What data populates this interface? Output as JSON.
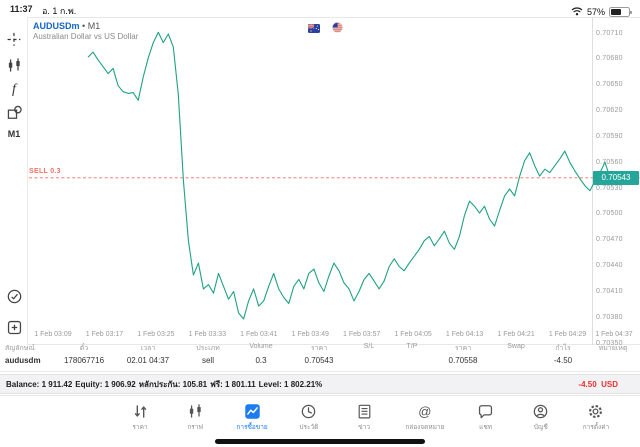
{
  "status_bar": {
    "time": "11:37",
    "date": "อ. 1 ก.พ.",
    "battery_percent": "57%"
  },
  "chart": {
    "symbol": "AUDUSDm",
    "bullet": "•",
    "timeframe": "M1",
    "description": "Australian Dollar vs US Dollar",
    "sell_label": "SELL 0.3",
    "current_price_box": "0.70543",
    "y_axis_labels": [
      "0.70710",
      "0.70680",
      "0.70650",
      "0.70620",
      "0.70590",
      "0.70560",
      "0.70530",
      "0.70500",
      "0.70470",
      "0.70440",
      "0.70410",
      "0.70380",
      "0.70350"
    ],
    "x_axis_labels": [
      "1 Feb 03:09",
      "1 Feb 03:17",
      "1 Feb 03:25",
      "1 Feb 03:33",
      "1 Feb 03:41",
      "1 Feb 03:49",
      "1 Feb 03:57",
      "1 Feb 04:05",
      "1 Feb 04:13",
      "1 Feb 04:21",
      "1 Feb 04:29",
      "1 Feb 04:37"
    ],
    "colors": {
      "line": "#1fa183",
      "sell": "#ee7165",
      "price_box": "#26a69a",
      "symbol": "#1666c5",
      "dot": "#e5322e"
    }
  },
  "chart_data": {
    "type": "line",
    "title": "AUDUSDm M1 — Australian Dollar vs US Dollar",
    "x_range": [
      "1 Feb 03:09",
      "1 Feb 04:37"
    ],
    "ylim": [
      0.7035,
      0.7071
    ],
    "y_ticks": [
      0.7071,
      0.7068,
      0.7065,
      0.7062,
      0.7059,
      0.7056,
      0.7053,
      0.705,
      0.7047,
      0.7044,
      0.7041,
      0.7038,
      0.7035
    ],
    "sell_line": 0.70543,
    "last_price": 0.70543,
    "prices": [
      0.70683,
      0.70689,
      0.7068,
      0.70672,
      0.70664,
      0.7067,
      0.7065,
      0.70643,
      0.70641,
      0.70642,
      0.70633,
      0.7066,
      0.70682,
      0.707,
      0.70712,
      0.707,
      0.7071,
      0.70695,
      0.7064,
      0.7054,
      0.7047,
      0.7043,
      0.70444,
      0.70414,
      0.70419,
      0.70409,
      0.70432,
      0.70417,
      0.70402,
      0.70411,
      0.70386,
      0.70379,
      0.704,
      0.70414,
      0.70394,
      0.704,
      0.70417,
      0.70432,
      0.70414,
      0.70404,
      0.70397,
      0.70417,
      0.70425,
      0.70414,
      0.70432,
      0.70437,
      0.70421,
      0.70411,
      0.70429,
      0.70444,
      0.70435,
      0.70421,
      0.70414,
      0.704,
      0.70411,
      0.70425,
      0.70432,
      0.70423,
      0.70414,
      0.70423,
      0.7044,
      0.70449,
      0.7044,
      0.70435,
      0.70444,
      0.70452,
      0.7046,
      0.7047,
      0.70475,
      0.70464,
      0.70472,
      0.70481,
      0.70467,
      0.7046,
      0.70475,
      0.70499,
      0.70516,
      0.7051,
      0.70502,
      0.7051,
      0.70495,
      0.70487,
      0.70505,
      0.70522,
      0.7053,
      0.70522,
      0.70545,
      0.70563,
      0.70572,
      0.70557,
      0.70545,
      0.70553,
      0.70549,
      0.70557,
      0.70565,
      0.70574,
      0.70561,
      0.70551,
      0.70542,
      0.70534,
      0.70528,
      0.70539,
      0.70549,
      0.70561,
      0.70543
    ]
  },
  "sidebar": {
    "items": [
      {
        "icon": "crosshair-icon"
      },
      {
        "icon": "candlestick-icon"
      },
      {
        "icon": "indicator-f-icon"
      },
      {
        "icon": "objects-icon"
      },
      {
        "label": "M1"
      }
    ],
    "bottom_items": [
      {
        "icon": "circle-check-icon"
      },
      {
        "icon": "add-square-icon"
      }
    ]
  },
  "positions_table": {
    "headers": [
      "สัญลักษณ์",
      "ตั๋ว",
      "เวลา",
      "ประเภท",
      "Volume",
      "ราคา",
      "S/L",
      "T/P",
      "ราคา",
      "Swap",
      "กำไร",
      "หมายเหตุ"
    ],
    "row": [
      "audusdm",
      "178067716",
      "02.01 04:37",
      "sell",
      "0.3",
      "0.70543",
      "",
      "",
      "0.70558",
      "",
      "-4.50",
      ""
    ]
  },
  "account_bar": {
    "segments": [
      {
        "label": "Balance:",
        "value": "1 911.42"
      },
      {
        "label": "Equity:",
        "value": "1 906.92"
      },
      {
        "label": "หลักประกัน:",
        "value": "105.81"
      },
      {
        "label": "ฟรี:",
        "value": "1 801.11"
      },
      {
        "label": "Level:",
        "value": "1 802.21%"
      }
    ],
    "profit": "-4.50",
    "profit_currency": "USD"
  },
  "nav": {
    "active_index": 2,
    "items": [
      {
        "label": "ราคา",
        "icon": "quotes-arrows-icon"
      },
      {
        "label": "กราฟ",
        "icon": "candlestick-chart-icon"
      },
      {
        "label": "การซื้อขาย",
        "icon": "trade-chart-icon"
      },
      {
        "label": "ประวัติ",
        "icon": "history-clock-icon"
      },
      {
        "label": "ข่าว",
        "icon": "news-document-icon"
      },
      {
        "label": "กล่องจดหมาย",
        "icon": "mailbox-at-icon"
      },
      {
        "label": "แชท",
        "icon": "chat-bubble-icon"
      },
      {
        "label": "บัญชี",
        "icon": "account-person-icon"
      },
      {
        "label": "การตั้งค่า",
        "icon": "settings-gear-icon"
      }
    ]
  }
}
